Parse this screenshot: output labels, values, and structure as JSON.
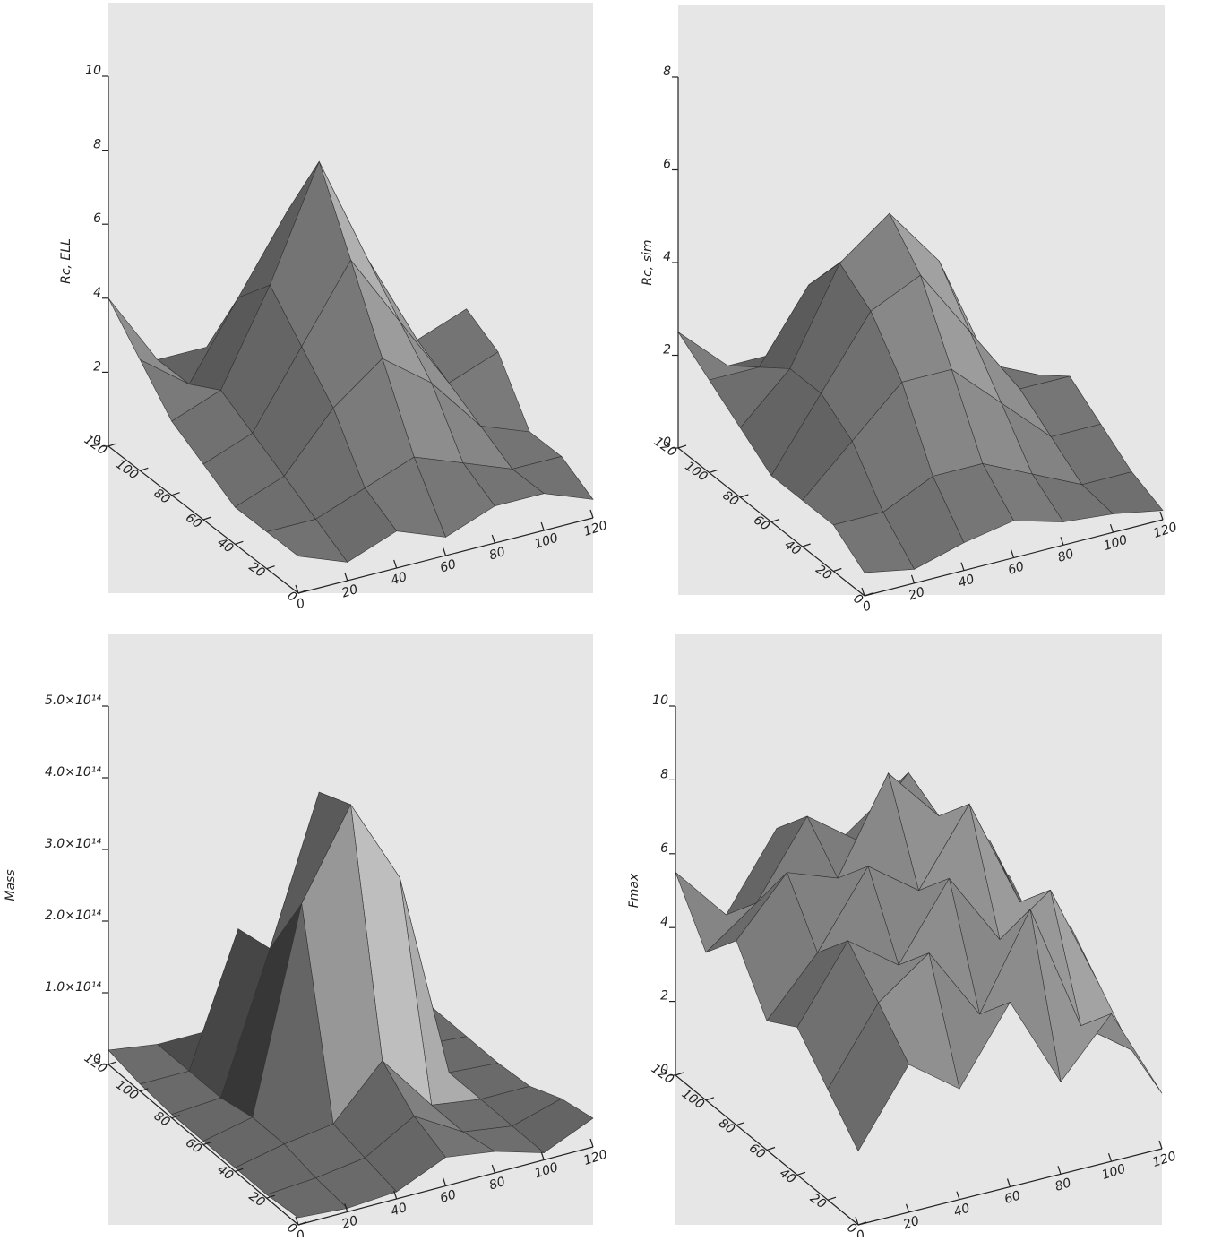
{
  "chart_data": [
    {
      "type": "surface",
      "z_label": "Rc, ELL",
      "xlim": [
        0,
        120
      ],
      "ylim": [
        0,
        120
      ],
      "zlim": [
        0,
        10
      ],
      "xticks": [
        0,
        20,
        40,
        60,
        80,
        100,
        120
      ],
      "yticks": [
        0,
        20,
        40,
        60,
        80,
        100,
        120
      ],
      "zticks": [
        0,
        2,
        4,
        6,
        8,
        10
      ],
      "x": [
        0,
        20,
        40,
        60,
        80,
        100,
        120
      ],
      "y": [
        0,
        20,
        40,
        60,
        80,
        100,
        120
      ],
      "z": [
        [
          1,
          0.5,
          1,
          0.5,
          1,
          1,
          0.5
        ],
        [
          1,
          1,
          1.5,
          2,
          1.5,
          1,
          1
        ],
        [
          1,
          1.5,
          3,
          4,
          3,
          1.5,
          1
        ],
        [
          1.5,
          2,
          4,
          6,
          4,
          2,
          2.5
        ],
        [
          2,
          2.5,
          5,
          8,
          5,
          2.5,
          3
        ],
        [
          3,
          2,
          4,
          6,
          4,
          2,
          1
        ],
        [
          4,
          2,
          2,
          3,
          2,
          1,
          0.5
        ]
      ]
    },
    {
      "type": "surface",
      "z_label": "Rc, sim",
      "xlim": [
        0,
        120
      ],
      "ylim": [
        0,
        120
      ],
      "zlim": [
        0,
        8
      ],
      "xticks": [
        0,
        20,
        40,
        60,
        80,
        100,
        120
      ],
      "yticks": [
        0,
        20,
        40,
        60,
        80,
        100,
        120
      ],
      "zticks": [
        0,
        2,
        4,
        6,
        8
      ],
      "x": [
        0,
        20,
        40,
        60,
        80,
        100,
        120
      ],
      "y": [
        0,
        20,
        40,
        60,
        80,
        100,
        120
      ],
      "z": [
        [
          0.5,
          0.3,
          0.6,
          0.8,
          0.5,
          0.4,
          0.2
        ],
        [
          1,
          1,
          1.5,
          1.5,
          1,
          0.5,
          0.5
        ],
        [
          1,
          2,
          3,
          3,
          2,
          1,
          1
        ],
        [
          1,
          2.5,
          4,
          4.5,
          3,
          1.5,
          1.5
        ],
        [
          1.5,
          2.5,
          4.5,
          5.3,
          4,
          1.5,
          1
        ],
        [
          2,
          2,
          3.5,
          4,
          3,
          1,
          0.5
        ],
        [
          2.5,
          1.5,
          1.5,
          2,
          1.5,
          1,
          0.5
        ]
      ]
    },
    {
      "type": "surface",
      "z_label": "Mass",
      "xlim": [
        0,
        120
      ],
      "ylim": [
        0,
        120
      ],
      "zlim": [
        0,
        500000000000000
      ],
      "xticks": [
        0,
        20,
        40,
        60,
        80,
        100,
        120
      ],
      "yticks": [
        0,
        20,
        40,
        60,
        80,
        100,
        120
      ],
      "zticks": [
        0,
        {
          "value": 100000000000000,
          "label": "1.0×10¹⁴"
        },
        {
          "value": 200000000000000,
          "label": "2.0×10¹⁴"
        },
        {
          "value": 300000000000000,
          "label": "3.0×10¹⁴"
        },
        {
          "value": 400000000000000,
          "label": "4.0×10¹⁴"
        },
        {
          "value": 500000000000000,
          "label": "5.0×10¹⁴"
        }
      ],
      "x": [
        0,
        20,
        40,
        60,
        80,
        100,
        120
      ],
      "y": [
        0,
        20,
        40,
        60,
        80,
        100,
        120
      ],
      "z": [
        [
          10000000000000,
          5000000000000,
          10000000000000,
          40000000000000,
          30000000000000,
          10000000000000,
          40000000000000
        ],
        [
          5000000000000,
          10000000000000,
          20000000000000,
          60000000000000,
          20000000000000,
          10000000000000,
          30000000000000
        ],
        [
          5000000000000,
          20000000000000,
          30000000000000,
          100000000000000,
          20000000000000,
          10000000000000,
          10000000000000
        ],
        [
          5000000000000,
          20000000000000,
          300000000000000,
          420000000000000,
          300000000000000,
          10000000000000,
          5000000000000
        ],
        [
          5000000000000,
          10000000000000,
          200000000000000,
          400000000000000,
          300000000000000,
          10000000000000,
          5000000000000
        ],
        [
          10000000000000,
          10000000000000,
          190000000000000,
          30000000000000,
          20000000000000,
          10000000000000,
          5000000000000
        ],
        [
          20000000000000,
          10000000000000,
          10000000000000,
          20000000000000,
          10000000000000,
          5000000000000,
          5000000000000
        ]
      ]
    },
    {
      "type": "surface",
      "z_label": "Fmax",
      "xlim": [
        0,
        120
      ],
      "ylim": [
        0,
        120
      ],
      "zlim": [
        0,
        10
      ],
      "xticks": [
        0,
        20,
        40,
        60,
        80,
        100,
        120
      ],
      "yticks": [
        0,
        20,
        40,
        60,
        80,
        100,
        120
      ],
      "zticks": [
        0,
        2,
        4,
        6,
        8,
        10
      ],
      "x": [
        0,
        20,
        40,
        60,
        80,
        100,
        120
      ],
      "y": [
        0,
        20,
        40,
        60,
        80,
        100,
        120
      ],
      "z": [
        [
          2,
          4,
          3,
          5,
          2.5,
          4,
          1.5
        ],
        [
          3,
          5,
          6,
          4,
          6.5,
          3,
          2
        ],
        [
          4,
          6,
          5,
          7,
          5,
          6,
          3
        ],
        [
          3.5,
          5,
          7,
          6,
          8,
          5,
          4
        ],
        [
          5,
          6.5,
          6,
          8.5,
          7,
          6,
          3
        ],
        [
          4,
          5,
          7,
          6,
          7.5,
          5,
          4
        ],
        [
          5.5,
          4,
          6,
          5,
          6,
          4.5,
          3.5
        ]
      ]
    }
  ]
}
